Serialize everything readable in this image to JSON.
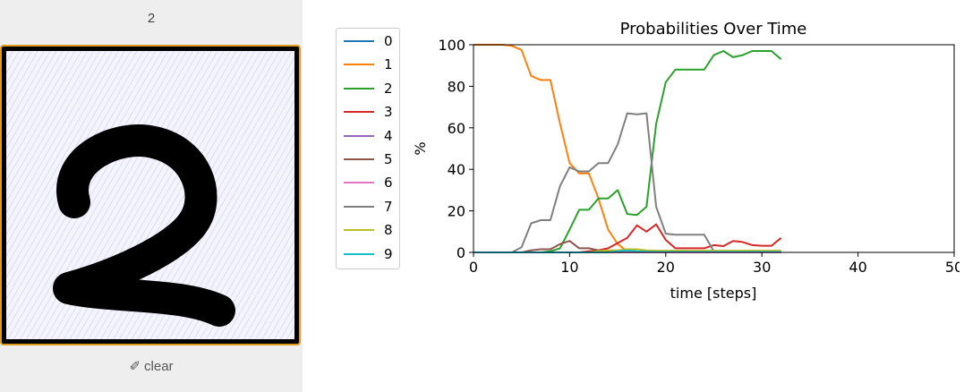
{
  "prediction": "2",
  "clear_label": "clear",
  "eraser_glyph": "✐",
  "colors": [
    "#1f77b4",
    "#ff7f0e",
    "#2ca02c",
    "#d62728",
    "#9467bd",
    "#8c564b",
    "#e377c2",
    "#7f7f7f",
    "#bcbd22",
    "#17becf"
  ],
  "chart_data": {
    "type": "line",
    "title": "Probabilities Over Time",
    "xlabel": "time [steps]",
    "ylabel": "%",
    "xlim": [
      0,
      50
    ],
    "ylim": [
      0,
      100
    ],
    "xticks": [
      0,
      10,
      20,
      30,
      40,
      50
    ],
    "yticks": [
      0,
      20,
      40,
      60,
      80,
      100
    ],
    "grid": false,
    "legend_position": "left-outside",
    "x": [
      0,
      1,
      2,
      3,
      4,
      5,
      6,
      7,
      8,
      9,
      10,
      11,
      12,
      13,
      14,
      15,
      16,
      17,
      18,
      19,
      20,
      21,
      22,
      23,
      24,
      25,
      26,
      27,
      28,
      29,
      30,
      31,
      32
    ],
    "series": [
      {
        "name": "0",
        "values": [
          0,
          0,
          0,
          0,
          0,
          0,
          0,
          0,
          0,
          0,
          0,
          0,
          0,
          0,
          0,
          0,
          0,
          0,
          0,
          0,
          0,
          0,
          0,
          0,
          0,
          0,
          0,
          0,
          0,
          0,
          0,
          0,
          0
        ]
      },
      {
        "name": "1",
        "values": [
          100,
          100,
          100,
          100,
          99.5,
          97.5,
          85,
          83,
          83,
          62,
          43,
          38,
          38,
          26,
          11,
          4,
          0.5,
          0.3,
          0.2,
          0.2,
          0.1,
          0.1,
          0.1,
          0.1,
          0.1,
          0.1,
          0.1,
          0.1,
          0.1,
          0.1,
          0.1,
          0.1,
          0.1
        ]
      },
      {
        "name": "2",
        "values": [
          0,
          0,
          0,
          0,
          0,
          0,
          0,
          0,
          0.5,
          2,
          11,
          20.5,
          20.5,
          26,
          26,
          30,
          18.5,
          18,
          22,
          62,
          82,
          88,
          88,
          88,
          88,
          95,
          97,
          94,
          95,
          97,
          97,
          97,
          93
        ]
      },
      {
        "name": "3",
        "values": [
          0,
          0,
          0,
          0,
          0,
          0,
          0,
          0,
          0,
          0,
          0,
          0,
          0.5,
          1,
          2,
          4.5,
          7,
          13,
          10,
          13.5,
          6,
          2,
          2,
          2,
          2,
          3.5,
          3,
          5.5,
          5,
          3.5,
          3.2,
          3.2,
          7
        ]
      },
      {
        "name": "4",
        "values": [
          0,
          0,
          0,
          0,
          0,
          0,
          0,
          0,
          0,
          0,
          0,
          0,
          0,
          0,
          0,
          0,
          0,
          0,
          0,
          0,
          0,
          0,
          0,
          0,
          0,
          0,
          0,
          0,
          0,
          0,
          0,
          0,
          0
        ]
      },
      {
        "name": "5",
        "values": [
          0,
          0,
          0,
          0,
          0,
          0,
          1,
          1.5,
          1.5,
          4,
          5.5,
          2,
          2,
          1,
          0.5,
          0.5,
          0.2,
          0.2,
          0.1,
          0.1,
          0.1,
          0.1,
          0.1,
          0.1,
          0.1,
          0.1,
          0.1,
          0.1,
          0.1,
          0.1,
          0.1,
          0.1,
          0.1
        ]
      },
      {
        "name": "6",
        "values": [
          0,
          0,
          0,
          0,
          0,
          0,
          0,
          0,
          0,
          0,
          0,
          0,
          0,
          0,
          0,
          0,
          0,
          0,
          0,
          0,
          0,
          0,
          0,
          0,
          0,
          0,
          0,
          0,
          0,
          0,
          0,
          0,
          0
        ]
      },
      {
        "name": "7",
        "values": [
          0,
          0,
          0,
          0,
          0,
          2.5,
          14,
          15.5,
          15.5,
          32,
          41,
          39,
          39,
          43,
          43,
          52,
          67,
          66.5,
          67,
          22,
          9,
          8.5,
          8.5,
          8.5,
          8.5,
          0.5,
          0.2,
          0.2,
          0.2,
          0.2,
          0.2,
          0.2,
          0.2
        ]
      },
      {
        "name": "8",
        "values": [
          0,
          0,
          0,
          0,
          0,
          0,
          0,
          0,
          0,
          0,
          0,
          0,
          0,
          0.5,
          1,
          1,
          1.5,
          1.5,
          1,
          0.8,
          0.8,
          0.8,
          0.8,
          0.8,
          0.8,
          0.8,
          0.8,
          0.8,
          0.8,
          0.8,
          0.8,
          0.8,
          0.8
        ]
      },
      {
        "name": "9",
        "values": [
          0,
          0,
          0,
          0,
          0,
          0,
          0,
          0,
          0,
          0,
          0,
          0,
          0,
          0,
          0,
          0.5,
          1,
          0.5,
          0.3,
          0.2,
          0.2,
          0.2,
          0.2,
          0.2,
          0.2,
          0.2,
          0.2,
          0.2,
          0.2,
          0.2,
          0.2,
          0.2,
          0.2
        ]
      }
    ]
  }
}
